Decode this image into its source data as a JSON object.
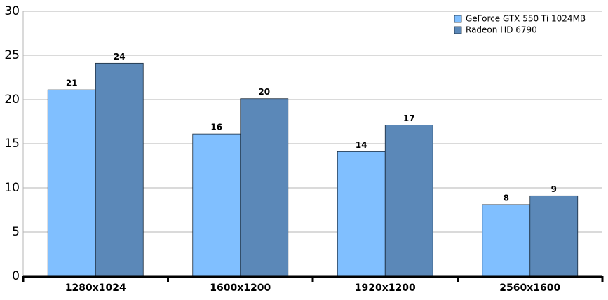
{
  "chart_data": {
    "type": "bar",
    "categories": [
      "1280x1024",
      "1600x1200",
      "1920x1200",
      "2560x1600"
    ],
    "series": [
      {
        "name": "GeForce GTX 550 Ti 1024MB",
        "color": "#80bfff",
        "values": [
          21.1,
          16.1,
          14.1,
          8.1
        ],
        "value_labels": [
          "21",
          "16",
          "14",
          "8"
        ]
      },
      {
        "name": "Radeon HD 6790",
        "color": "#5b88b8",
        "values": [
          24.1,
          20.1,
          17.1,
          9.1
        ],
        "value_labels": [
          "24",
          "20",
          "17",
          "9"
        ]
      }
    ],
    "ylim": [
      0,
      30
    ],
    "yticks": [
      0,
      5,
      10,
      15,
      20,
      25,
      30
    ],
    "grid": true,
    "legend": "top-right"
  }
}
